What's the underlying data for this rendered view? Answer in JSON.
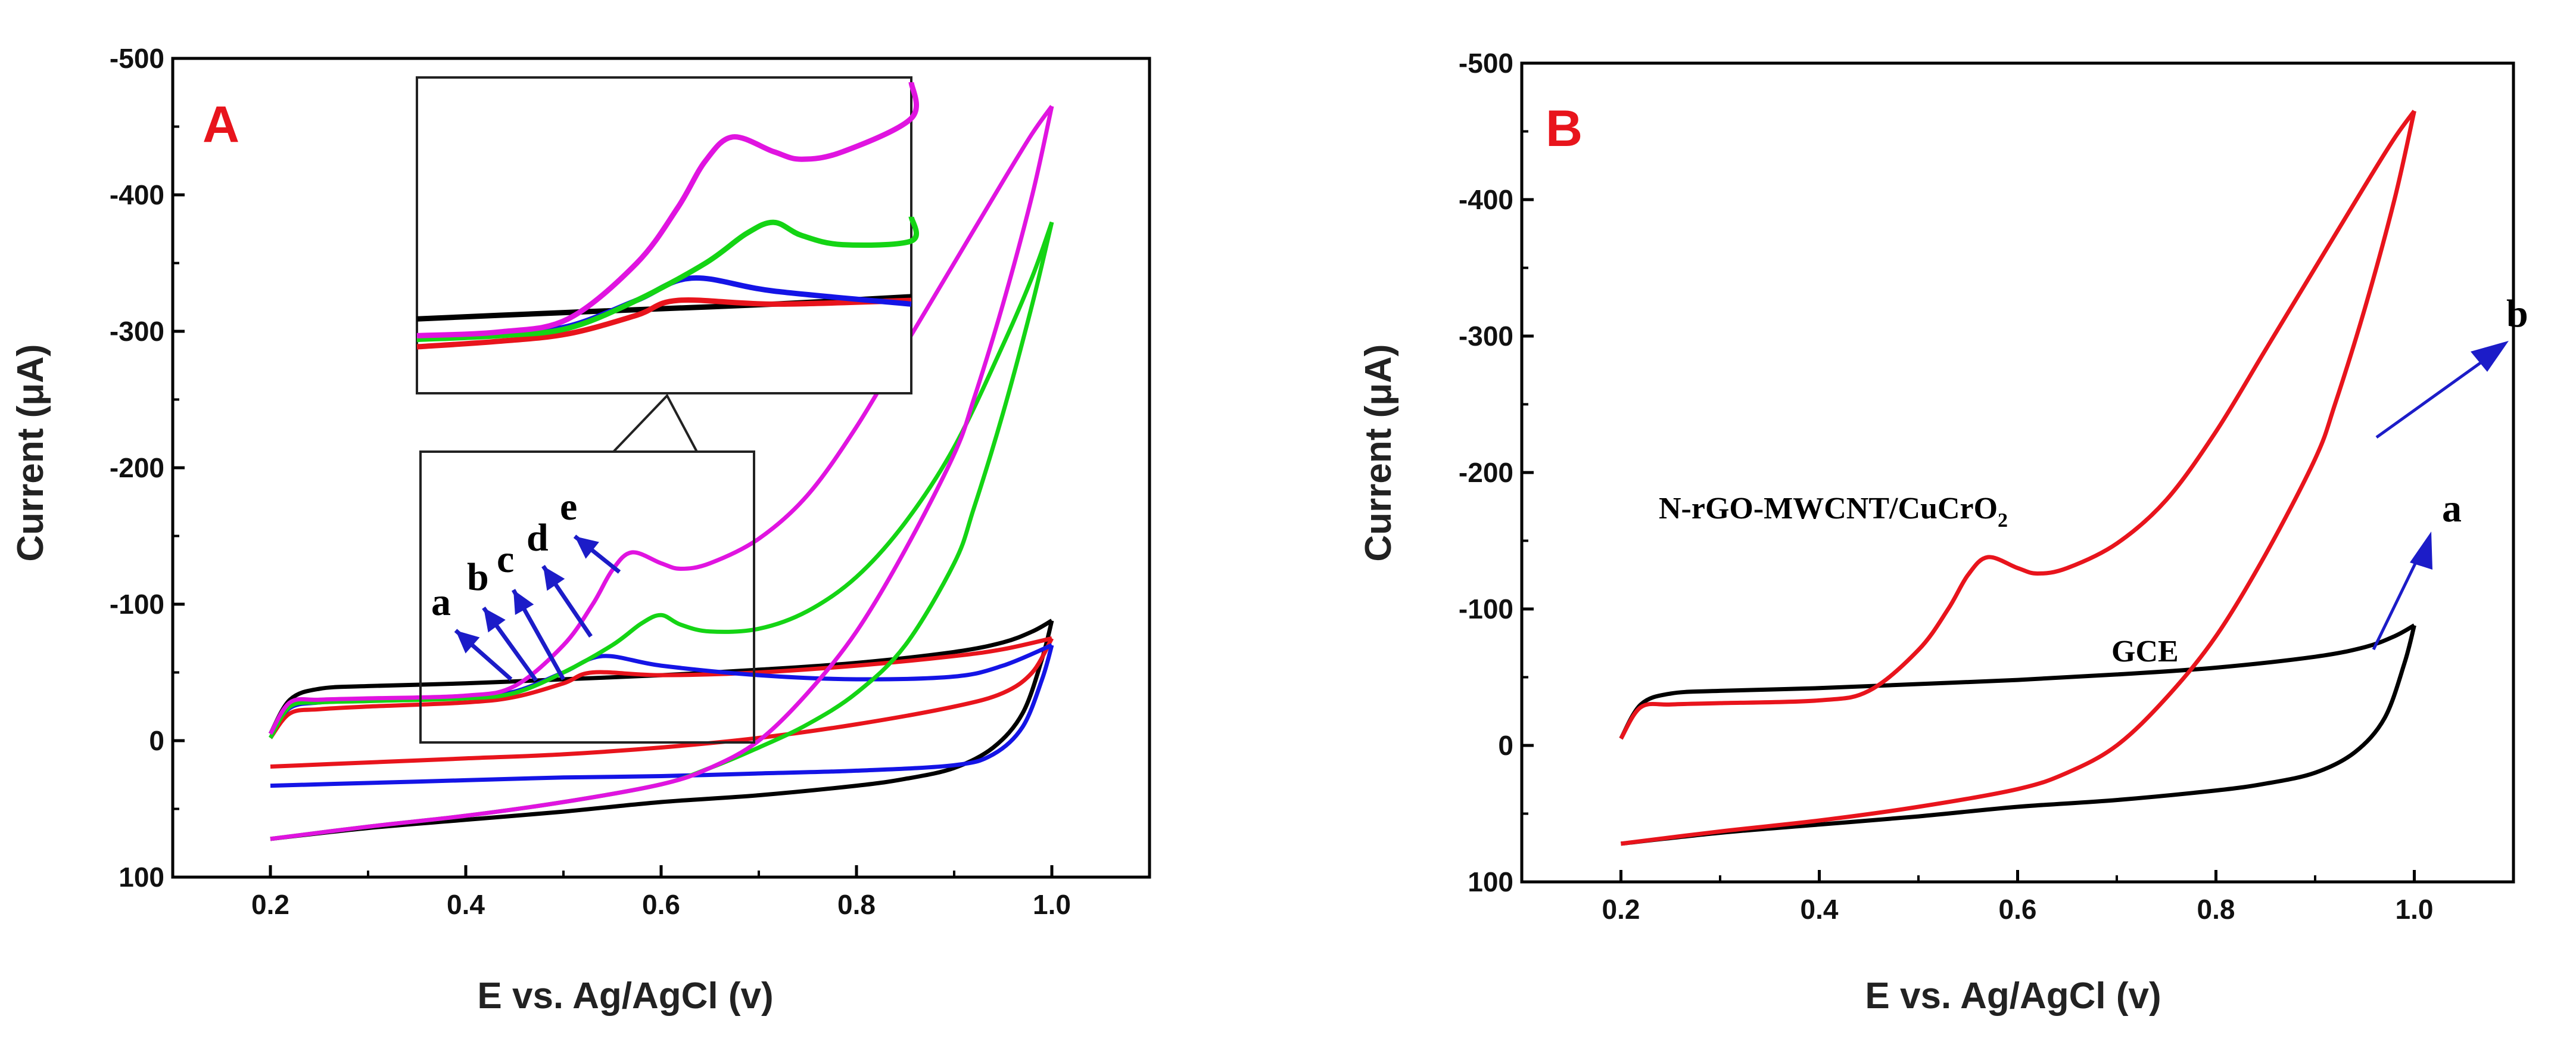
{
  "colors": {
    "a": "#000000",
    "b": "#e8141c",
    "c": "#1414e6",
    "d": "#14d414",
    "e": "#e014e0",
    "arrow": "#1c1cc8",
    "panel_letter": "#e8141c"
  },
  "chart_data": [
    {
      "panel": "A",
      "type": "line",
      "panel_label": "A",
      "xlabel": "E vs. Ag/AgCl (v)",
      "ylabel": "Current (μA)",
      "xlim": [
        0.1,
        1.1
      ],
      "ylim": [
        100,
        -500
      ],
      "x_ticks": [
        0.2,
        0.4,
        0.6,
        0.8,
        1.0
      ],
      "x_tick_labels": [
        "0.2",
        "0.4",
        "0.6",
        "0.8",
        "1.0"
      ],
      "y_ticks": [
        -500,
        -400,
        -300,
        -200,
        -100,
        0,
        100
      ],
      "y_tick_labels": [
        "-500",
        "-400",
        "-300",
        "-200",
        "-100",
        "0",
        "100"
      ],
      "curve_labels": [
        "a",
        "b",
        "c",
        "d",
        "e"
      ],
      "series": [
        {
          "name": "a",
          "color": "#000000",
          "forward_x": [
            0.2,
            0.22,
            0.25,
            0.3,
            0.4,
            0.5,
            0.6,
            0.7,
            0.8,
            0.9,
            0.95,
            0.98,
            1.0
          ],
          "forward_y": [
            -5,
            -30,
            -38,
            -40,
            -42,
            -45,
            -48,
            -52,
            -57,
            -65,
            -72,
            -80,
            -88
          ],
          "reverse_x": [
            1.0,
            0.99,
            0.97,
            0.94,
            0.9,
            0.85,
            0.8,
            0.7,
            0.6,
            0.5,
            0.4,
            0.3,
            0.2
          ],
          "reverse_y": [
            -88,
            -60,
            -20,
            5,
            20,
            28,
            33,
            40,
            45,
            52,
            58,
            64,
            72
          ]
        },
        {
          "name": "b",
          "color": "#e8141c",
          "forward_x": [
            0.2,
            0.22,
            0.25,
            0.3,
            0.4,
            0.45,
            0.5,
            0.53,
            0.6,
            0.7,
            0.8,
            0.9,
            0.95,
            1.0
          ],
          "forward_y": [
            -2,
            -20,
            -23,
            -25,
            -28,
            -32,
            -42,
            -50,
            -48,
            -50,
            -55,
            -62,
            -67,
            -75
          ],
          "reverse_x": [
            1.0,
            0.98,
            0.95,
            0.9,
            0.8,
            0.7,
            0.6,
            0.5,
            0.4,
            0.3,
            0.2
          ],
          "reverse_y": [
            -75,
            -50,
            -35,
            -25,
            -12,
            -2,
            5,
            10,
            13,
            16,
            19
          ]
        },
        {
          "name": "c",
          "color": "#1414e6",
          "forward_x": [
            0.2,
            0.22,
            0.25,
            0.3,
            0.4,
            0.45,
            0.5,
            0.54,
            0.6,
            0.7,
            0.8,
            0.9,
            0.95,
            1.0
          ],
          "forward_y": [
            -5,
            -24,
            -28,
            -30,
            -32,
            -36,
            -50,
            -62,
            -55,
            -48,
            -45,
            -47,
            -55,
            -70
          ],
          "reverse_x": [
            1.0,
            0.99,
            0.97,
            0.94,
            0.9,
            0.8,
            0.7,
            0.6,
            0.5,
            0.4,
            0.3,
            0.2
          ],
          "reverse_y": [
            -70,
            -45,
            -10,
            10,
            18,
            22,
            24,
            26,
            27,
            29,
            31,
            33
          ]
        },
        {
          "name": "d",
          "color": "#14d414",
          "forward_x": [
            0.2,
            0.22,
            0.25,
            0.3,
            0.4,
            0.45,
            0.5,
            0.55,
            0.58,
            0.6,
            0.62,
            0.65,
            0.7,
            0.75,
            0.8,
            0.85,
            0.9,
            0.95,
            0.98,
            1.0
          ],
          "forward_y": [
            -2,
            -25,
            -28,
            -29,
            -31,
            -35,
            -50,
            -70,
            -86,
            -92,
            -85,
            -80,
            -82,
            -95,
            -120,
            -160,
            -215,
            -290,
            -340,
            -380
          ],
          "reverse_x": [
            1.0,
            0.98,
            0.95,
            0.92,
            0.9,
            0.85,
            0.8,
            0.75,
            0.7,
            0.65,
            0.6,
            0.5,
            0.4,
            0.3,
            0.2
          ],
          "reverse_y": [
            -380,
            -320,
            -240,
            -170,
            -130,
            -70,
            -35,
            -12,
            5,
            20,
            32,
            45,
            55,
            63,
            72
          ]
        },
        {
          "name": "e",
          "color": "#e014e0",
          "forward_x": [
            0.2,
            0.22,
            0.25,
            0.3,
            0.4,
            0.45,
            0.5,
            0.53,
            0.55,
            0.57,
            0.6,
            0.62,
            0.65,
            0.7,
            0.75,
            0.8,
            0.85,
            0.9,
            0.95,
            0.98,
            1.0
          ],
          "forward_y": [
            -5,
            -28,
            -30,
            -31,
            -33,
            -40,
            -70,
            -100,
            -125,
            -138,
            -130,
            -126,
            -130,
            -148,
            -180,
            -230,
            -290,
            -350,
            -410,
            -445,
            -465
          ],
          "reverse_x": [
            1.0,
            0.98,
            0.95,
            0.92,
            0.9,
            0.85,
            0.8,
            0.75,
            0.7,
            0.65,
            0.6,
            0.5,
            0.4,
            0.3,
            0.2
          ],
          "reverse_y": [
            -465,
            -400,
            -320,
            -250,
            -210,
            -140,
            -80,
            -35,
            0,
            20,
            32,
            45,
            55,
            63,
            72
          ]
        }
      ]
    },
    {
      "panel": "B",
      "type": "line",
      "panel_label": "B",
      "xlabel": "E vs. Ag/AgCl (v)",
      "ylabel": "Current (μA)",
      "xlim": [
        0.1,
        1.1
      ],
      "ylim": [
        100,
        -500
      ],
      "x_ticks": [
        0.2,
        0.4,
        0.6,
        0.8,
        1.0
      ],
      "x_tick_labels": [
        "0.2",
        "0.4",
        "0.6",
        "0.8",
        "1.0"
      ],
      "y_ticks": [
        -500,
        -400,
        -300,
        -200,
        -100,
        0,
        100
      ],
      "y_tick_labels": [
        "-500",
        "-400",
        "-300",
        "-200",
        "-100",
        "0",
        "100"
      ],
      "annotations": {
        "a_letter": "a",
        "b_letter": "b",
        "gce": "GCE",
        "composite_main": "N-rGO-MWCNT/CuCrO",
        "composite_sub": "2"
      },
      "series": [
        {
          "name": "a (GCE)",
          "color": "#000000",
          "forward_x": [
            0.2,
            0.22,
            0.25,
            0.3,
            0.4,
            0.5,
            0.6,
            0.7,
            0.8,
            0.9,
            0.95,
            0.98,
            1.0
          ],
          "forward_y": [
            -5,
            -30,
            -38,
            -40,
            -42,
            -45,
            -48,
            -52,
            -57,
            -65,
            -72,
            -80,
            -88
          ],
          "reverse_x": [
            1.0,
            0.99,
            0.97,
            0.94,
            0.9,
            0.85,
            0.8,
            0.7,
            0.6,
            0.5,
            0.4,
            0.3,
            0.2
          ],
          "reverse_y": [
            -88,
            -60,
            -20,
            5,
            20,
            28,
            33,
            40,
            45,
            52,
            58,
            64,
            72
          ]
        },
        {
          "name": "b (N-rGO-MWCNT/CuCrO2)",
          "color": "#e8141c",
          "forward_x": [
            0.2,
            0.22,
            0.25,
            0.3,
            0.4,
            0.45,
            0.5,
            0.53,
            0.55,
            0.57,
            0.6,
            0.62,
            0.65,
            0.7,
            0.75,
            0.8,
            0.85,
            0.9,
            0.95,
            0.98,
            1.0
          ],
          "forward_y": [
            -5,
            -28,
            -30,
            -31,
            -33,
            -40,
            -70,
            -100,
            -125,
            -138,
            -130,
            -126,
            -130,
            -148,
            -180,
            -230,
            -290,
            -350,
            -410,
            -445,
            -465
          ],
          "reverse_x": [
            1.0,
            0.98,
            0.95,
            0.92,
            0.9,
            0.85,
            0.8,
            0.75,
            0.7,
            0.65,
            0.6,
            0.5,
            0.4,
            0.3,
            0.2
          ],
          "reverse_y": [
            -465,
            -400,
            -320,
            -250,
            -210,
            -140,
            -80,
            -35,
            0,
            20,
            32,
            45,
            55,
            63,
            72
          ]
        }
      ]
    }
  ]
}
